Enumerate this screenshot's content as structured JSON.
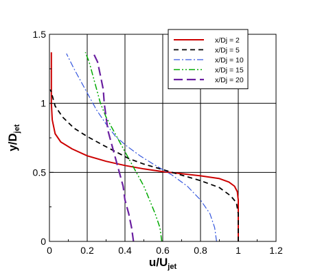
{
  "chart_data": {
    "type": "line",
    "xlabel": {
      "main": "u/U",
      "sub": "jet"
    },
    "ylabel": {
      "main": "y/D",
      "sub": "jet"
    },
    "xlim": [
      0,
      1.2
    ],
    "ylim": [
      0,
      1.5
    ],
    "xticks": [
      0,
      0.2,
      0.4,
      0.6,
      0.8,
      1,
      1.2
    ],
    "xtick_labels": [
      "0",
      "0.2",
      "0.4",
      "0.6",
      "0.8",
      "1",
      "1.2"
    ],
    "yticks": [
      0,
      0.5,
      1,
      1.5
    ],
    "ytick_labels": [
      "0",
      "0.5",
      "1",
      "1.5"
    ],
    "grid": true,
    "legend_position": "top-right",
    "series": [
      {
        "name": "x/Dj = 2",
        "color": "#cc0000",
        "dash": "solid",
        "points": [
          [
            1.0,
            0
          ],
          [
            1.0,
            0.3
          ],
          [
            0.995,
            0.36
          ],
          [
            0.98,
            0.4
          ],
          [
            0.95,
            0.43
          ],
          [
            0.9,
            0.455
          ],
          [
            0.8,
            0.475
          ],
          [
            0.7,
            0.49
          ],
          [
            0.6,
            0.505
          ],
          [
            0.5,
            0.525
          ],
          [
            0.4,
            0.55
          ],
          [
            0.3,
            0.58
          ],
          [
            0.2,
            0.62
          ],
          [
            0.12,
            0.67
          ],
          [
            0.06,
            0.72
          ],
          [
            0.03,
            0.78
          ],
          [
            0.015,
            0.88
          ],
          [
            0.01,
            1.0
          ],
          [
            0.01,
            1.2
          ],
          [
            0.01,
            1.37
          ]
        ]
      },
      {
        "name": "x/Dj = 5",
        "color": "#000000",
        "dash": "dashed",
        "points": [
          [
            1.0,
            0
          ],
          [
            1.0,
            0.2
          ],
          [
            0.99,
            0.28
          ],
          [
            0.96,
            0.33
          ],
          [
            0.9,
            0.39
          ],
          [
            0.8,
            0.44
          ],
          [
            0.7,
            0.48
          ],
          [
            0.6,
            0.52
          ],
          [
            0.5,
            0.56
          ],
          [
            0.42,
            0.6
          ],
          [
            0.35,
            0.65
          ],
          [
            0.28,
            0.7
          ],
          [
            0.2,
            0.76
          ],
          [
            0.13,
            0.82
          ],
          [
            0.07,
            0.9
          ],
          [
            0.03,
            0.98
          ],
          [
            0.01,
            1.08
          ],
          [
            0.005,
            1.1
          ]
        ]
      },
      {
        "name": "x/Dj = 10",
        "color": "#3355dd",
        "dash": "dashdot",
        "points": [
          [
            0.885,
            0
          ],
          [
            0.875,
            0.1
          ],
          [
            0.85,
            0.2
          ],
          [
            0.8,
            0.3
          ],
          [
            0.73,
            0.4
          ],
          [
            0.65,
            0.48
          ],
          [
            0.55,
            0.56
          ],
          [
            0.48,
            0.62
          ],
          [
            0.41,
            0.69
          ],
          [
            0.35,
            0.76
          ],
          [
            0.3,
            0.85
          ],
          [
            0.25,
            0.95
          ],
          [
            0.21,
            1.05
          ],
          [
            0.17,
            1.15
          ],
          [
            0.13,
            1.25
          ],
          [
            0.09,
            1.36
          ]
        ]
      },
      {
        "name": "x/Dj = 15",
        "color": "#00aa00",
        "dash": "dashdotdot",
        "points": [
          [
            0.595,
            0
          ],
          [
            0.585,
            0.1
          ],
          [
            0.56,
            0.2
          ],
          [
            0.53,
            0.3
          ],
          [
            0.5,
            0.4
          ],
          [
            0.46,
            0.5
          ],
          [
            0.42,
            0.6
          ],
          [
            0.38,
            0.7
          ],
          [
            0.34,
            0.8
          ],
          [
            0.3,
            0.9
          ],
          [
            0.27,
            1.0
          ],
          [
            0.25,
            1.1
          ],
          [
            0.23,
            1.2
          ],
          [
            0.21,
            1.3
          ],
          [
            0.19,
            1.37
          ]
        ]
      },
      {
        "name": "x/Dj = 20",
        "color": "#6a1fa0",
        "dash": "longdash",
        "points": [
          [
            0.445,
            0
          ],
          [
            0.435,
            0.1
          ],
          [
            0.42,
            0.2
          ],
          [
            0.4,
            0.3
          ],
          [
            0.39,
            0.4
          ],
          [
            0.37,
            0.5
          ],
          [
            0.35,
            0.6
          ],
          [
            0.33,
            0.7
          ],
          [
            0.31,
            0.8
          ],
          [
            0.3,
            0.9
          ],
          [
            0.29,
            1.0
          ],
          [
            0.285,
            1.1
          ],
          [
            0.27,
            1.2
          ],
          [
            0.255,
            1.3
          ],
          [
            0.23,
            1.37
          ]
        ]
      }
    ]
  }
}
